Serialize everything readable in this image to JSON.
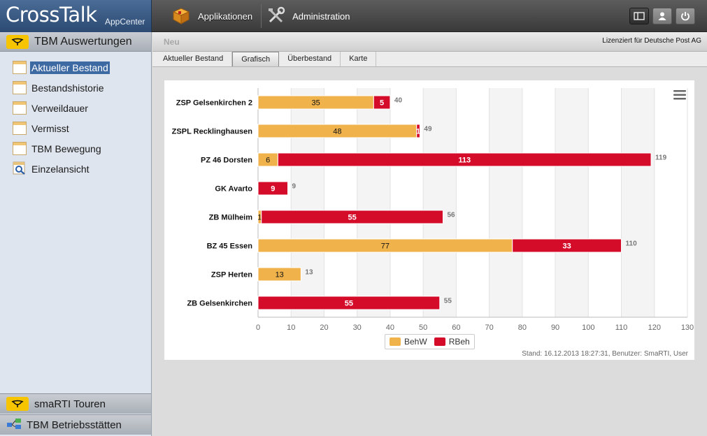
{
  "app": {
    "title": "CrossTalk",
    "subtitle": "AppCenter"
  },
  "topnav": {
    "applications": "Applikationen",
    "administration": "Administration"
  },
  "sidebar": {
    "header": "TBM Auswertungen",
    "items": [
      {
        "label": "Aktueller Bestand",
        "selected": true
      },
      {
        "label": "Bestandshistorie"
      },
      {
        "label": "Verweildauer"
      },
      {
        "label": "Vermisst"
      },
      {
        "label": "TBM Bewegung"
      },
      {
        "label": "Einzelansicht"
      }
    ],
    "bottom": [
      {
        "label": "smaRTI Touren"
      },
      {
        "label": "TBM Betriebsstätten"
      }
    ]
  },
  "subbar": {
    "new_label": "Neu",
    "license": "Lizenziert für Deutsche Post AG"
  },
  "tabs": [
    "Aktueller Bestand",
    "Grafisch",
    "Überbestand",
    "Karte"
  ],
  "active_tab": "Grafisch",
  "colors": {
    "behw": "#f0b24b",
    "rbeh": "#d50b2a",
    "brand_yellow": "#f6c500",
    "selection": "#3e6aa4"
  },
  "chart_data": {
    "type": "bar",
    "orientation": "horizontal",
    "stacked": true,
    "categories": [
      "ZSP Gelsenkirchen 2",
      "ZSPL Recklinghausen",
      "PZ 46 Dorsten",
      "GK Avarto",
      "ZB Mülheim",
      "BZ 45 Essen",
      "ZSP Herten",
      "ZB Gelsenkirchen"
    ],
    "series": [
      {
        "name": "BehW",
        "color": "#f0b24b",
        "values": [
          35,
          48,
          6,
          0,
          1,
          77,
          13,
          0
        ]
      },
      {
        "name": "RBeh",
        "color": "#d50b2a",
        "values": [
          5,
          1,
          113,
          9,
          55,
          33,
          0,
          55
        ]
      }
    ],
    "totals": [
      40,
      49,
      119,
      9,
      56,
      110,
      13,
      55
    ],
    "xlim": [
      0,
      130
    ],
    "xticks": [
      0,
      10,
      20,
      30,
      40,
      50,
      60,
      70,
      80,
      90,
      100,
      110,
      120,
      130
    ],
    "grid": true,
    "legend": "bottom-center"
  },
  "footer": {
    "stand": "Stand: 16.12.2013 18:27:31, Benutzer: SmaRTI, User"
  }
}
